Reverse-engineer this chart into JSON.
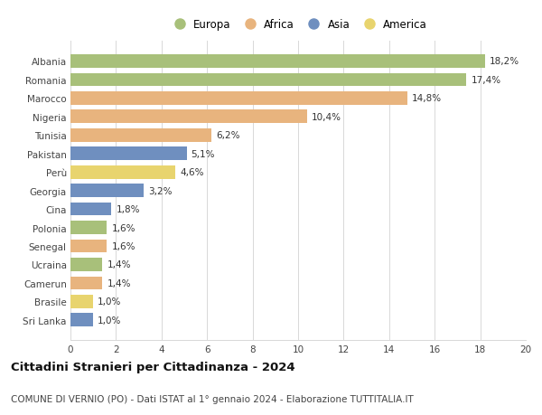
{
  "categories": [
    "Albania",
    "Romania",
    "Marocco",
    "Nigeria",
    "Tunisia",
    "Pakistan",
    "Perù",
    "Georgia",
    "Cina",
    "Polonia",
    "Senegal",
    "Ucraina",
    "Camerun",
    "Brasile",
    "Sri Lanka"
  ],
  "values": [
    18.2,
    17.4,
    14.8,
    10.4,
    6.2,
    5.1,
    4.6,
    3.2,
    1.8,
    1.6,
    1.6,
    1.4,
    1.4,
    1.0,
    1.0
  ],
  "labels": [
    "18,2%",
    "17,4%",
    "14,8%",
    "10,4%",
    "6,2%",
    "5,1%",
    "4,6%",
    "3,2%",
    "1,8%",
    "1,6%",
    "1,6%",
    "1,4%",
    "1,4%",
    "1,0%",
    "1,0%"
  ],
  "continents": [
    "Europa",
    "Europa",
    "Africa",
    "Africa",
    "Africa",
    "Asia",
    "America",
    "Asia",
    "Asia",
    "Europa",
    "Africa",
    "Europa",
    "Africa",
    "America",
    "Asia"
  ],
  "colors": {
    "Europa": "#a8c07a",
    "Africa": "#e8b47e",
    "Asia": "#6f8fbf",
    "America": "#e8d46e"
  },
  "xlim": [
    0,
    20
  ],
  "xticks": [
    0,
    2,
    4,
    6,
    8,
    10,
    12,
    14,
    16,
    18,
    20
  ],
  "title": "Cittadini Stranieri per Cittadinanza - 2024",
  "subtitle": "COMUNE DI VERNIO (PO) - Dati ISTAT al 1° gennaio 2024 - Elaborazione TUTTITALIA.IT",
  "background_color": "#ffffff",
  "grid_color": "#d8d8d8",
  "bar_height": 0.72,
  "label_fontsize": 7.5,
  "ytick_fontsize": 7.5,
  "xtick_fontsize": 7.5,
  "title_fontsize": 9.5,
  "subtitle_fontsize": 7.5,
  "legend_fontsize": 8.5,
  "legend_order": [
    "Europa",
    "Africa",
    "Asia",
    "America"
  ]
}
